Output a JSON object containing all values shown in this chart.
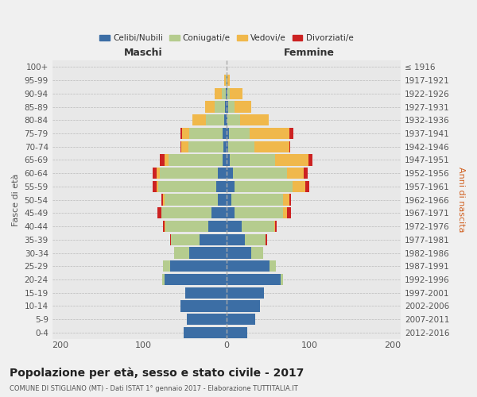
{
  "age_groups": [
    "0-4",
    "5-9",
    "10-14",
    "15-19",
    "20-24",
    "25-29",
    "30-34",
    "35-39",
    "40-44",
    "45-49",
    "50-54",
    "55-59",
    "60-64",
    "65-69",
    "70-74",
    "75-79",
    "80-84",
    "85-89",
    "90-94",
    "95-99",
    "100+"
  ],
  "birth_years": [
    "2012-2016",
    "2007-2011",
    "2002-2006",
    "1997-2001",
    "1992-1996",
    "1987-1991",
    "1982-1986",
    "1977-1981",
    "1972-1976",
    "1967-1971",
    "1962-1966",
    "1957-1961",
    "1952-1956",
    "1947-1951",
    "1942-1946",
    "1937-1941",
    "1932-1936",
    "1927-1931",
    "1922-1926",
    "1917-1921",
    "≤ 1916"
  ],
  "male": {
    "celibi": [
      52,
      48,
      55,
      50,
      75,
      68,
      45,
      32,
      22,
      18,
      10,
      12,
      10,
      5,
      4,
      5,
      3,
      2,
      1,
      0,
      0
    ],
    "coniugati": [
      0,
      0,
      0,
      0,
      2,
      8,
      18,
      35,
      52,
      60,
      65,
      70,
      70,
      65,
      42,
      40,
      22,
      12,
      5,
      1,
      0
    ],
    "vedovi": [
      0,
      0,
      0,
      0,
      0,
      0,
      0,
      0,
      1,
      0,
      1,
      2,
      4,
      5,
      8,
      8,
      16,
      12,
      8,
      2,
      0
    ],
    "divorziati": [
      0,
      0,
      0,
      0,
      0,
      0,
      0,
      1,
      1,
      5,
      2,
      5,
      5,
      5,
      1,
      2,
      0,
      0,
      0,
      0,
      0
    ]
  },
  "female": {
    "nubili": [
      25,
      35,
      40,
      45,
      65,
      52,
      30,
      22,
      18,
      10,
      6,
      10,
      8,
      4,
      2,
      3,
      1,
      2,
      1,
      1,
      0
    ],
    "coniugate": [
      0,
      0,
      0,
      0,
      3,
      8,
      14,
      25,
      40,
      58,
      62,
      70,
      65,
      55,
      32,
      25,
      15,
      8,
      3,
      0,
      0
    ],
    "vedove": [
      0,
      0,
      0,
      0,
      0,
      0,
      0,
      0,
      1,
      5,
      8,
      15,
      20,
      40,
      42,
      48,
      35,
      20,
      15,
      3,
      0
    ],
    "divorziate": [
      0,
      0,
      0,
      0,
      0,
      0,
      0,
      2,
      2,
      5,
      2,
      5,
      5,
      5,
      1,
      5,
      0,
      0,
      0,
      0,
      0
    ]
  },
  "colors": {
    "celibi": "#3c6ea5",
    "coniugati": "#b5cc8e",
    "vedovi": "#f0b84b",
    "divorziati": "#cc2222"
  },
  "xlim": [
    -210,
    210
  ],
  "xticks": [
    -200,
    -100,
    0,
    100,
    200
  ],
  "xticklabels": [
    "200",
    "100",
    "0",
    "100",
    "200"
  ],
  "title": "Popolazione per età, sesso e stato civile - 2017",
  "subtitle": "COMUNE DI STIGLIANO (MT) - Dati ISTAT 1° gennaio 2017 - Elaborazione TUTTITALIA.IT",
  "ylabel_left": "Fasce di età",
  "ylabel_right": "Anni di nascita",
  "label_maschi": "Maschi",
  "label_femmine": "Femmine",
  "legend_labels": [
    "Celibi/Nubili",
    "Coniugati/e",
    "Vedovi/e",
    "Divorziati/e"
  ],
  "bg_color": "#f0f0f0",
  "plot_bg": "#e8e8e8"
}
